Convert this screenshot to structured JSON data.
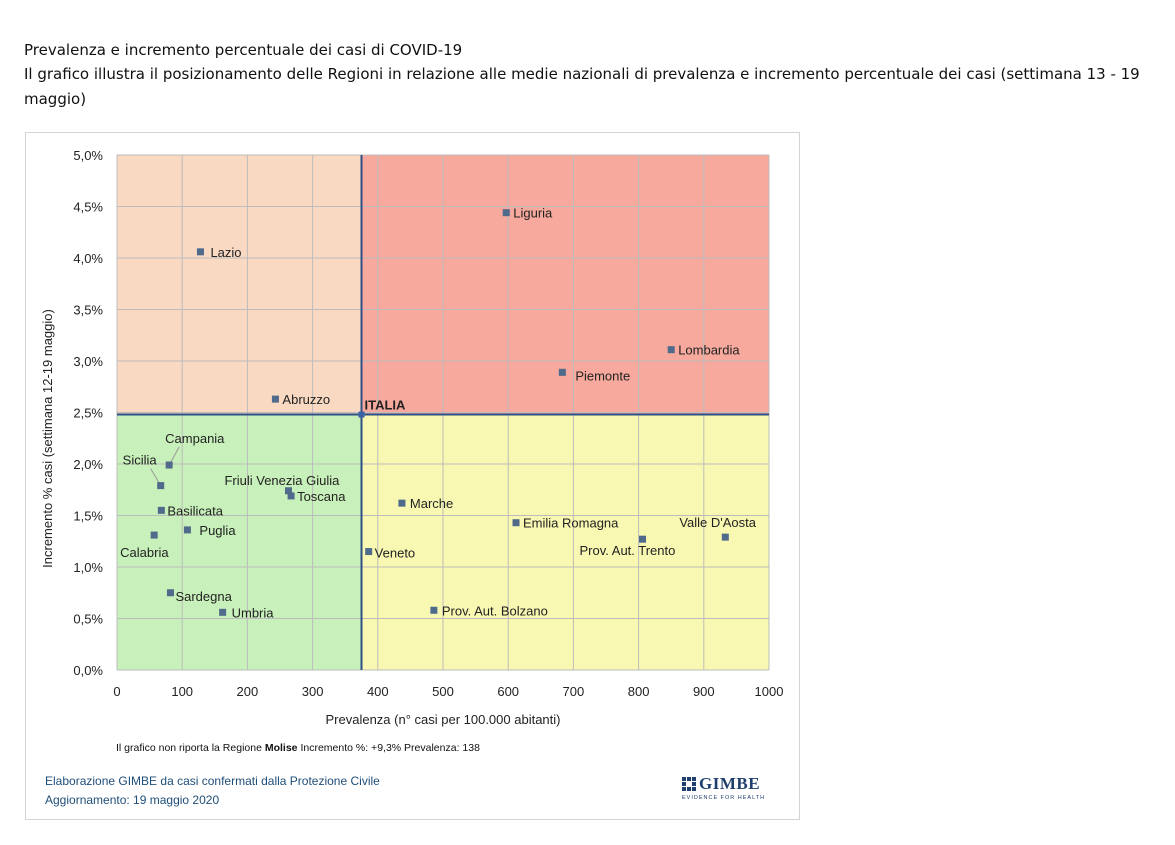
{
  "header": {
    "title": "Prevalenza e incremento percentuale dei casi di COVID-19",
    "description": "Il grafico illustra il posizionamento delle Regioni in relazione alle medie nazionali di prevalenza e incremento percentuale dei casi (settimana 13 - 19 maggio)"
  },
  "chart_data": {
    "type": "scatter",
    "xlabel": "Prevalenza  (n° casi per 100.000 abitanti)",
    "ylabel": "Incremento %  casi (settimana 12-19 maggio)",
    "xlim": [
      0,
      1000
    ],
    "ylim": [
      0,
      5
    ],
    "x_ticks": [
      "0",
      "100",
      "200",
      "300",
      "400",
      "500",
      "600",
      "700",
      "800",
      "900",
      "1000"
    ],
    "y_ticks": [
      "0,0%",
      "0,5%",
      "1,0%",
      "1,5%",
      "2,0%",
      "2,5%",
      "3,0%",
      "3,5%",
      "4,0%",
      "4,5%",
      "5,0%"
    ],
    "grid": true,
    "reference": {
      "label": "ITALIA",
      "x": 375,
      "y": 2.48
    },
    "quadrant_colors": {
      "low_prev_high_inc": "#f9d9c2",
      "high_prev_high_inc": "#f6a99c",
      "low_prev_low_inc": "#c8f0ba",
      "high_prev_low_inc": "#f8f8b2"
    },
    "marker_color": "#4f6a8a",
    "points": [
      {
        "label": "Liguria",
        "x": 597,
        "y": 4.44
      },
      {
        "label": "Lazio",
        "x": 128,
        "y": 4.06
      },
      {
        "label": "Lombardia",
        "x": 850,
        "y": 3.11
      },
      {
        "label": "Piemonte",
        "x": 683,
        "y": 2.89
      },
      {
        "label": "Abruzzo",
        "x": 243,
        "y": 2.63
      },
      {
        "label": "Campania",
        "x": 80,
        "y": 1.99
      },
      {
        "label": "Sicilia",
        "x": 67,
        "y": 1.79
      },
      {
        "label": "Friuli Venezia Giulia",
        "x": 263,
        "y": 1.74
      },
      {
        "label": "Toscana",
        "x": 267,
        "y": 1.69
      },
      {
        "label": "Marche",
        "x": 437,
        "y": 1.62
      },
      {
        "label": "Basilicata",
        "x": 68,
        "y": 1.55
      },
      {
        "label": "Emilia Romagna",
        "x": 612,
        "y": 1.43
      },
      {
        "label": "Puglia",
        "x": 108,
        "y": 1.36
      },
      {
        "label": "Calabria",
        "x": 57,
        "y": 1.31
      },
      {
        "label": "Valle D'Aosta",
        "x": 933,
        "y": 1.29
      },
      {
        "label": "Prov. Aut. Trento",
        "x": 806,
        "y": 1.27
      },
      {
        "label": "Veneto",
        "x": 386,
        "y": 1.15
      },
      {
        "label": "Sardegna",
        "x": 82,
        "y": 0.75
      },
      {
        "label": "Prov. Aut. Bolzano",
        "x": 486,
        "y": 0.58
      },
      {
        "label": "Umbria",
        "x": 162,
        "y": 0.56
      }
    ]
  },
  "note": {
    "before": "Il grafico non riporta la Regione ",
    "bold": "Molise",
    "after": " Incremento %: +9,3% Prevalenza: 138"
  },
  "credits": {
    "source": "Elaborazione GIMBE da casi confermati dalla Protezione Civile",
    "updated": "Aggiornamento: 19 maggio 2020"
  },
  "logo": {
    "name": "GIMBE",
    "tagline": "EVIDENCE FOR HEALTH"
  }
}
